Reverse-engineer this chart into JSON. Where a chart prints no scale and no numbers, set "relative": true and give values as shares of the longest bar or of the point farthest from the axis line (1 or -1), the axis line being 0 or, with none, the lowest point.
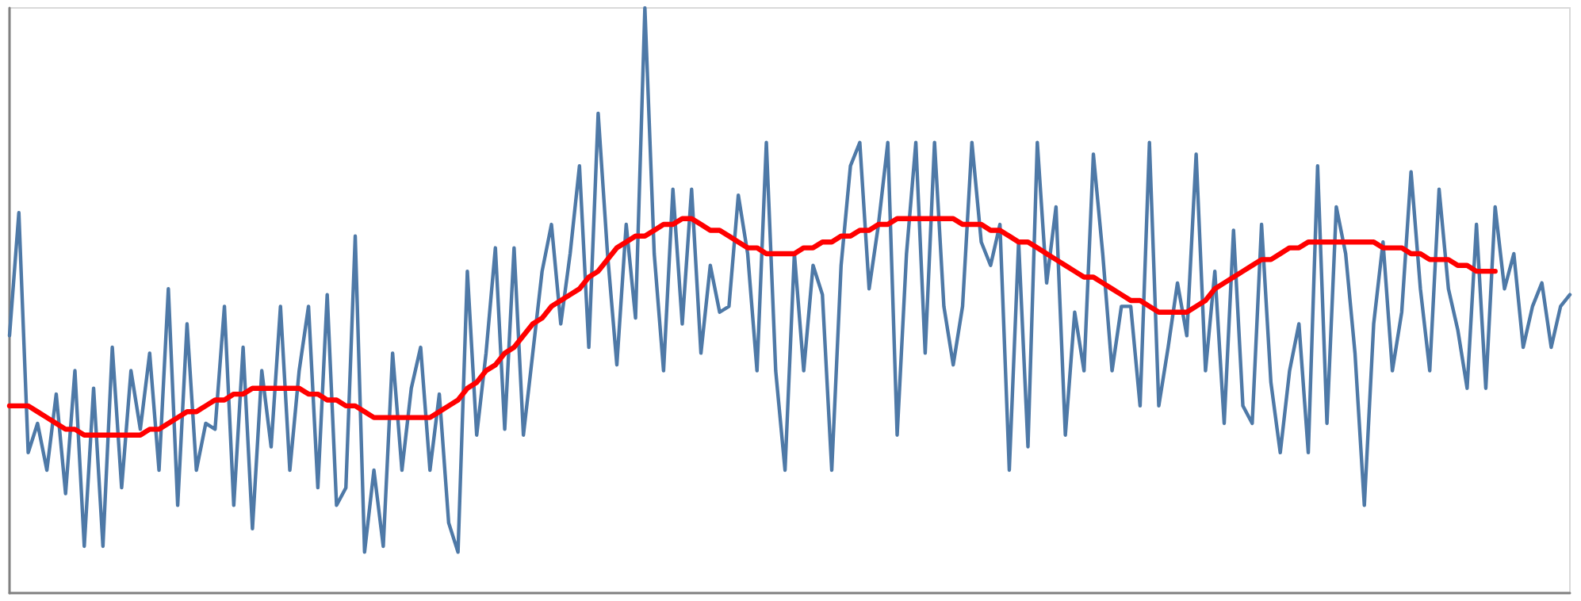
{
  "chart_data": {
    "type": "line",
    "relative": true,
    "grid": false,
    "line_style": "solid",
    "tick_labels": false,
    "categories": [
      null,
      null,
      null,
      null,
      null,
      null,
      null,
      null,
      null,
      null,
      null,
      null,
      null,
      null,
      null,
      null,
      null,
      null,
      null,
      null,
      null,
      null,
      null,
      null,
      null,
      null,
      null,
      null,
      null,
      null,
      null,
      null,
      null,
      null,
      null,
      null,
      null,
      null,
      null,
      null,
      null,
      null,
      null,
      null,
      null,
      null,
      null,
      null,
      null,
      null,
      null,
      null,
      null,
      null,
      null,
      null,
      null,
      null,
      null,
      null,
      null,
      null,
      null,
      null,
      null,
      null,
      null,
      null,
      null,
      null,
      null,
      null,
      null,
      null,
      null,
      null,
      null,
      null,
      null,
      null,
      null,
      null,
      null,
      null,
      null,
      null,
      null,
      null,
      null,
      null,
      null,
      null,
      null,
      null,
      null,
      null,
      null,
      null,
      null,
      null,
      null,
      null,
      null,
      null,
      null,
      null,
      null,
      null,
      null,
      null,
      null,
      null,
      null,
      null,
      null,
      null,
      null,
      null,
      null,
      null,
      null,
      null,
      null,
      null,
      null,
      null,
      null,
      null,
      null,
      null,
      null,
      null,
      null,
      null,
      null,
      null,
      null,
      null,
      null,
      null,
      null,
      null,
      null,
      null,
      null,
      null,
      null,
      null,
      null,
      null,
      null,
      null,
      null,
      null,
      null,
      null,
      null,
      null,
      null,
      null,
      null,
      null,
      null,
      null,
      null,
      null,
      null,
      null
    ],
    "series": [
      {
        "color": "#4e79a7",
        "values": [
          0.44,
          0.65,
          0.24,
          0.29,
          0.21,
          0.34,
          0.17,
          0.38,
          0.08,
          0.35,
          0.08,
          0.42,
          0.18,
          0.38,
          0.28,
          0.41,
          0.21,
          0.52,
          0.15,
          0.46,
          0.21,
          0.29,
          0.28,
          0.49,
          0.15,
          0.42,
          0.11,
          0.38,
          0.25,
          0.49,
          0.21,
          0.38,
          0.49,
          0.18,
          0.51,
          0.15,
          0.18,
          0.61,
          0.07,
          0.21,
          0.08,
          0.41,
          0.21,
          0.35,
          0.42,
          0.21,
          0.34,
          0.12,
          0.07,
          0.55,
          0.27,
          0.41,
          0.59,
          0.28,
          0.59,
          0.27,
          0.41,
          0.55,
          0.63,
          0.46,
          0.58,
          0.73,
          0.42,
          0.82,
          0.58,
          0.39,
          0.63,
          0.47,
          1,
          0.58,
          0.38,
          0.69,
          0.46,
          0.69,
          0.41,
          0.56,
          0.48,
          0.49,
          0.68,
          0.58,
          0.38,
          0.77,
          0.38,
          0.21,
          0.58,
          0.38,
          0.56,
          0.51,
          0.21,
          0.56,
          0.73,
          0.77,
          0.52,
          0.63,
          0.77,
          0.27,
          0.58,
          0.77,
          0.41,
          0.77,
          0.49,
          0.39,
          0.49,
          0.77,
          0.6,
          0.56,
          0.63,
          0.21,
          0.6,
          0.25,
          0.77,
          0.53,
          0.66,
          0.27,
          0.48,
          0.38,
          0.75,
          0.58,
          0.38,
          0.49,
          0.49,
          0.32,
          0.77,
          0.32,
          0.42,
          0.53,
          0.44,
          0.75,
          0.38,
          0.55,
          0.29,
          0.62,
          0.32,
          0.29,
          0.63,
          0.36,
          0.24,
          0.38,
          0.46,
          0.24,
          0.73,
          0.29,
          0.66,
          0.58,
          0.41,
          0.15,
          0.46,
          0.6,
          0.38,
          0.48,
          0.72,
          0.52,
          0.38,
          0.69,
          0.52,
          0.45,
          0.35,
          0.63,
          0.35,
          0.66,
          0.52,
          0.58,
          0.42,
          0.49,
          0.53,
          0.42,
          0.49,
          0.51
        ]
      },
      {
        "color": "#ff0000",
        "values": [
          0.32,
          0.32,
          0.32,
          0.31,
          0.3,
          0.29,
          0.28,
          0.28,
          0.27,
          0.27,
          0.27,
          0.27,
          0.27,
          0.27,
          0.27,
          0.28,
          0.28,
          0.29,
          0.3,
          0.31,
          0.31,
          0.32,
          0.33,
          0.33,
          0.34,
          0.34,
          0.35,
          0.35,
          0.35,
          0.35,
          0.35,
          0.35,
          0.34,
          0.34,
          0.33,
          0.33,
          0.32,
          0.32,
          0.31,
          0.3,
          0.3,
          0.3,
          0.3,
          0.3,
          0.3,
          0.3,
          0.31,
          0.32,
          0.33,
          0.35,
          0.36,
          0.38,
          0.39,
          0.41,
          0.42,
          0.44,
          0.46,
          0.47,
          0.49,
          0.5,
          0.51,
          0.52,
          0.54,
          0.55,
          0.57,
          0.59,
          0.6,
          0.61,
          0.61,
          0.62,
          0.63,
          0.63,
          0.64,
          0.64,
          0.63,
          0.62,
          0.62,
          0.61,
          0.6,
          0.59,
          0.59,
          0.58,
          0.58,
          0.58,
          0.58,
          0.59,
          0.59,
          0.6,
          0.6,
          0.61,
          0.61,
          0.62,
          0.62,
          0.63,
          0.63,
          0.64,
          0.64,
          0.64,
          0.64,
          0.64,
          0.64,
          0.64,
          0.63,
          0.63,
          0.63,
          0.62,
          0.62,
          0.61,
          0.6,
          0.6,
          0.59,
          0.58,
          0.57,
          0.56,
          0.55,
          0.54,
          0.54,
          0.53,
          0.52,
          0.51,
          0.5,
          0.5,
          0.49,
          0.48,
          0.48,
          0.48,
          0.48,
          0.49,
          0.5,
          0.52,
          0.53,
          0.54,
          0.55,
          0.56,
          0.57,
          0.57,
          0.58,
          0.59,
          0.59,
          0.6,
          0.6,
          0.6,
          0.6,
          0.6,
          0.6,
          0.6,
          0.6,
          0.59,
          0.59,
          0.59,
          0.58,
          0.58,
          0.57,
          0.57,
          0.57,
          0.56,
          0.56,
          0.55,
          0.55,
          0.55,
          null,
          null,
          null,
          null,
          null,
          null,
          null,
          null
        ]
      }
    ]
  }
}
